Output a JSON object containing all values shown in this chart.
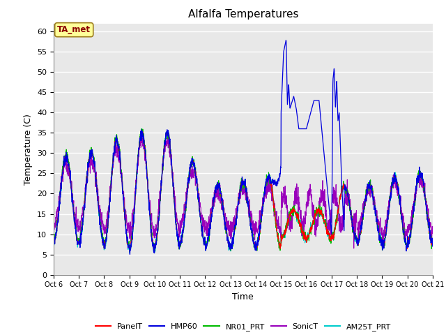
{
  "title": "Alfalfa Temperatures",
  "xlabel": "Time",
  "ylabel": "Temperature (C)",
  "ylim": [
    0,
    62
  ],
  "yticks": [
    0,
    5,
    10,
    15,
    20,
    25,
    30,
    35,
    40,
    45,
    50,
    55,
    60
  ],
  "xtick_labels": [
    "Oct 6",
    "Oct 7",
    "Oct 8",
    "Oct 9",
    "Oct 10",
    "Oct 11",
    "Oct 12",
    "Oct 13",
    "Oct 14",
    "Oct 15",
    "Oct 16",
    "Oct 17",
    "Oct 18",
    "Oct 19",
    "Oct 20",
    "Oct 21"
  ],
  "annotation": "TA_met",
  "annotation_color": "#8B0000",
  "annotation_bg": "#FFFF99",
  "bg_color": "#E8E8E8",
  "series_colors": {
    "PanelT": "#FF0000",
    "HMP60": "#0000DD",
    "NR01_PRT": "#00BB00",
    "SonicT": "#9900BB",
    "AM25T_PRT": "#00CCCC"
  }
}
